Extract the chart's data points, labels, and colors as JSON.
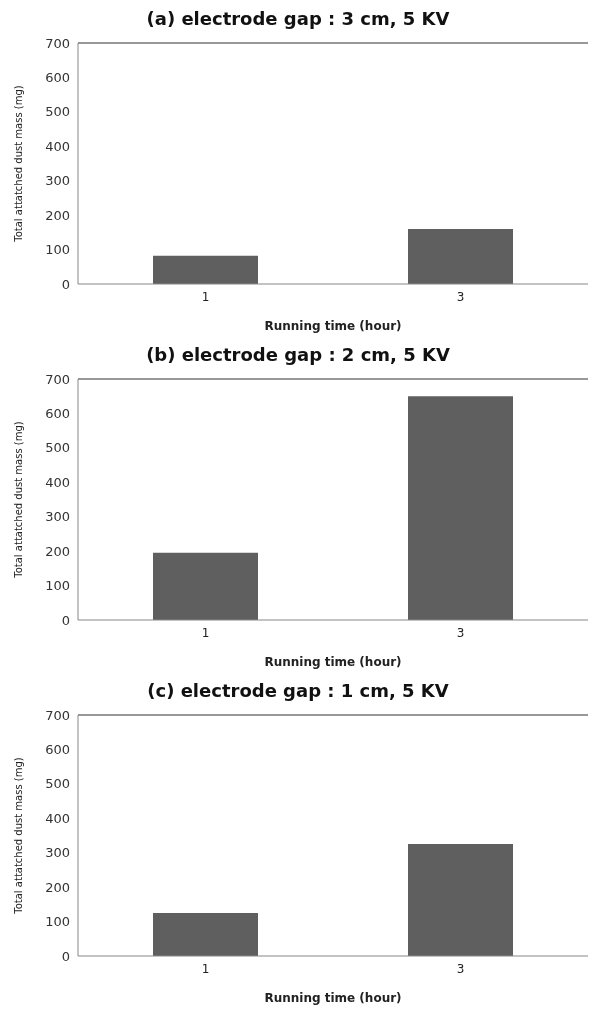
{
  "chart_data": [
    {
      "type": "bar",
      "title": "(a) electrode gap : 3 cm, 5 KV",
      "xlabel": "Running time (hour)",
      "ylabel": "Total attatched dust mass (mg)",
      "categories": [
        "1",
        "3"
      ],
      "values": [
        82,
        160
      ],
      "color": "#5f5f5f",
      "ylim": [
        0,
        700
      ],
      "yticks": [
        0,
        100,
        200,
        300,
        400,
        500,
        600,
        700
      ],
      "grid": false,
      "legend": false
    },
    {
      "type": "bar",
      "title": "(b) electrode gap : 2 cm, 5 KV",
      "xlabel": "Running time (hour)",
      "ylabel": "Total attatched dust mass (mg)",
      "categories": [
        "1",
        "3"
      ],
      "values": [
        195,
        650
      ],
      "color": "#5f5f5f",
      "ylim": [
        0,
        700
      ],
      "yticks": [
        0,
        100,
        200,
        300,
        400,
        500,
        600,
        700
      ],
      "grid": false,
      "legend": false
    },
    {
      "type": "bar",
      "title": "(c) electrode gap : 1 cm, 5 KV",
      "xlabel": "Running time (hour)",
      "ylabel": "Total attatched dust mass (mg)",
      "categories": [
        "1",
        "3"
      ],
      "values": [
        125,
        325
      ],
      "color": "#5f5f5f",
      "ylim": [
        0,
        700
      ],
      "yticks": [
        0,
        100,
        200,
        300,
        400,
        500,
        600,
        700
      ],
      "grid": false,
      "legend": false
    }
  ]
}
